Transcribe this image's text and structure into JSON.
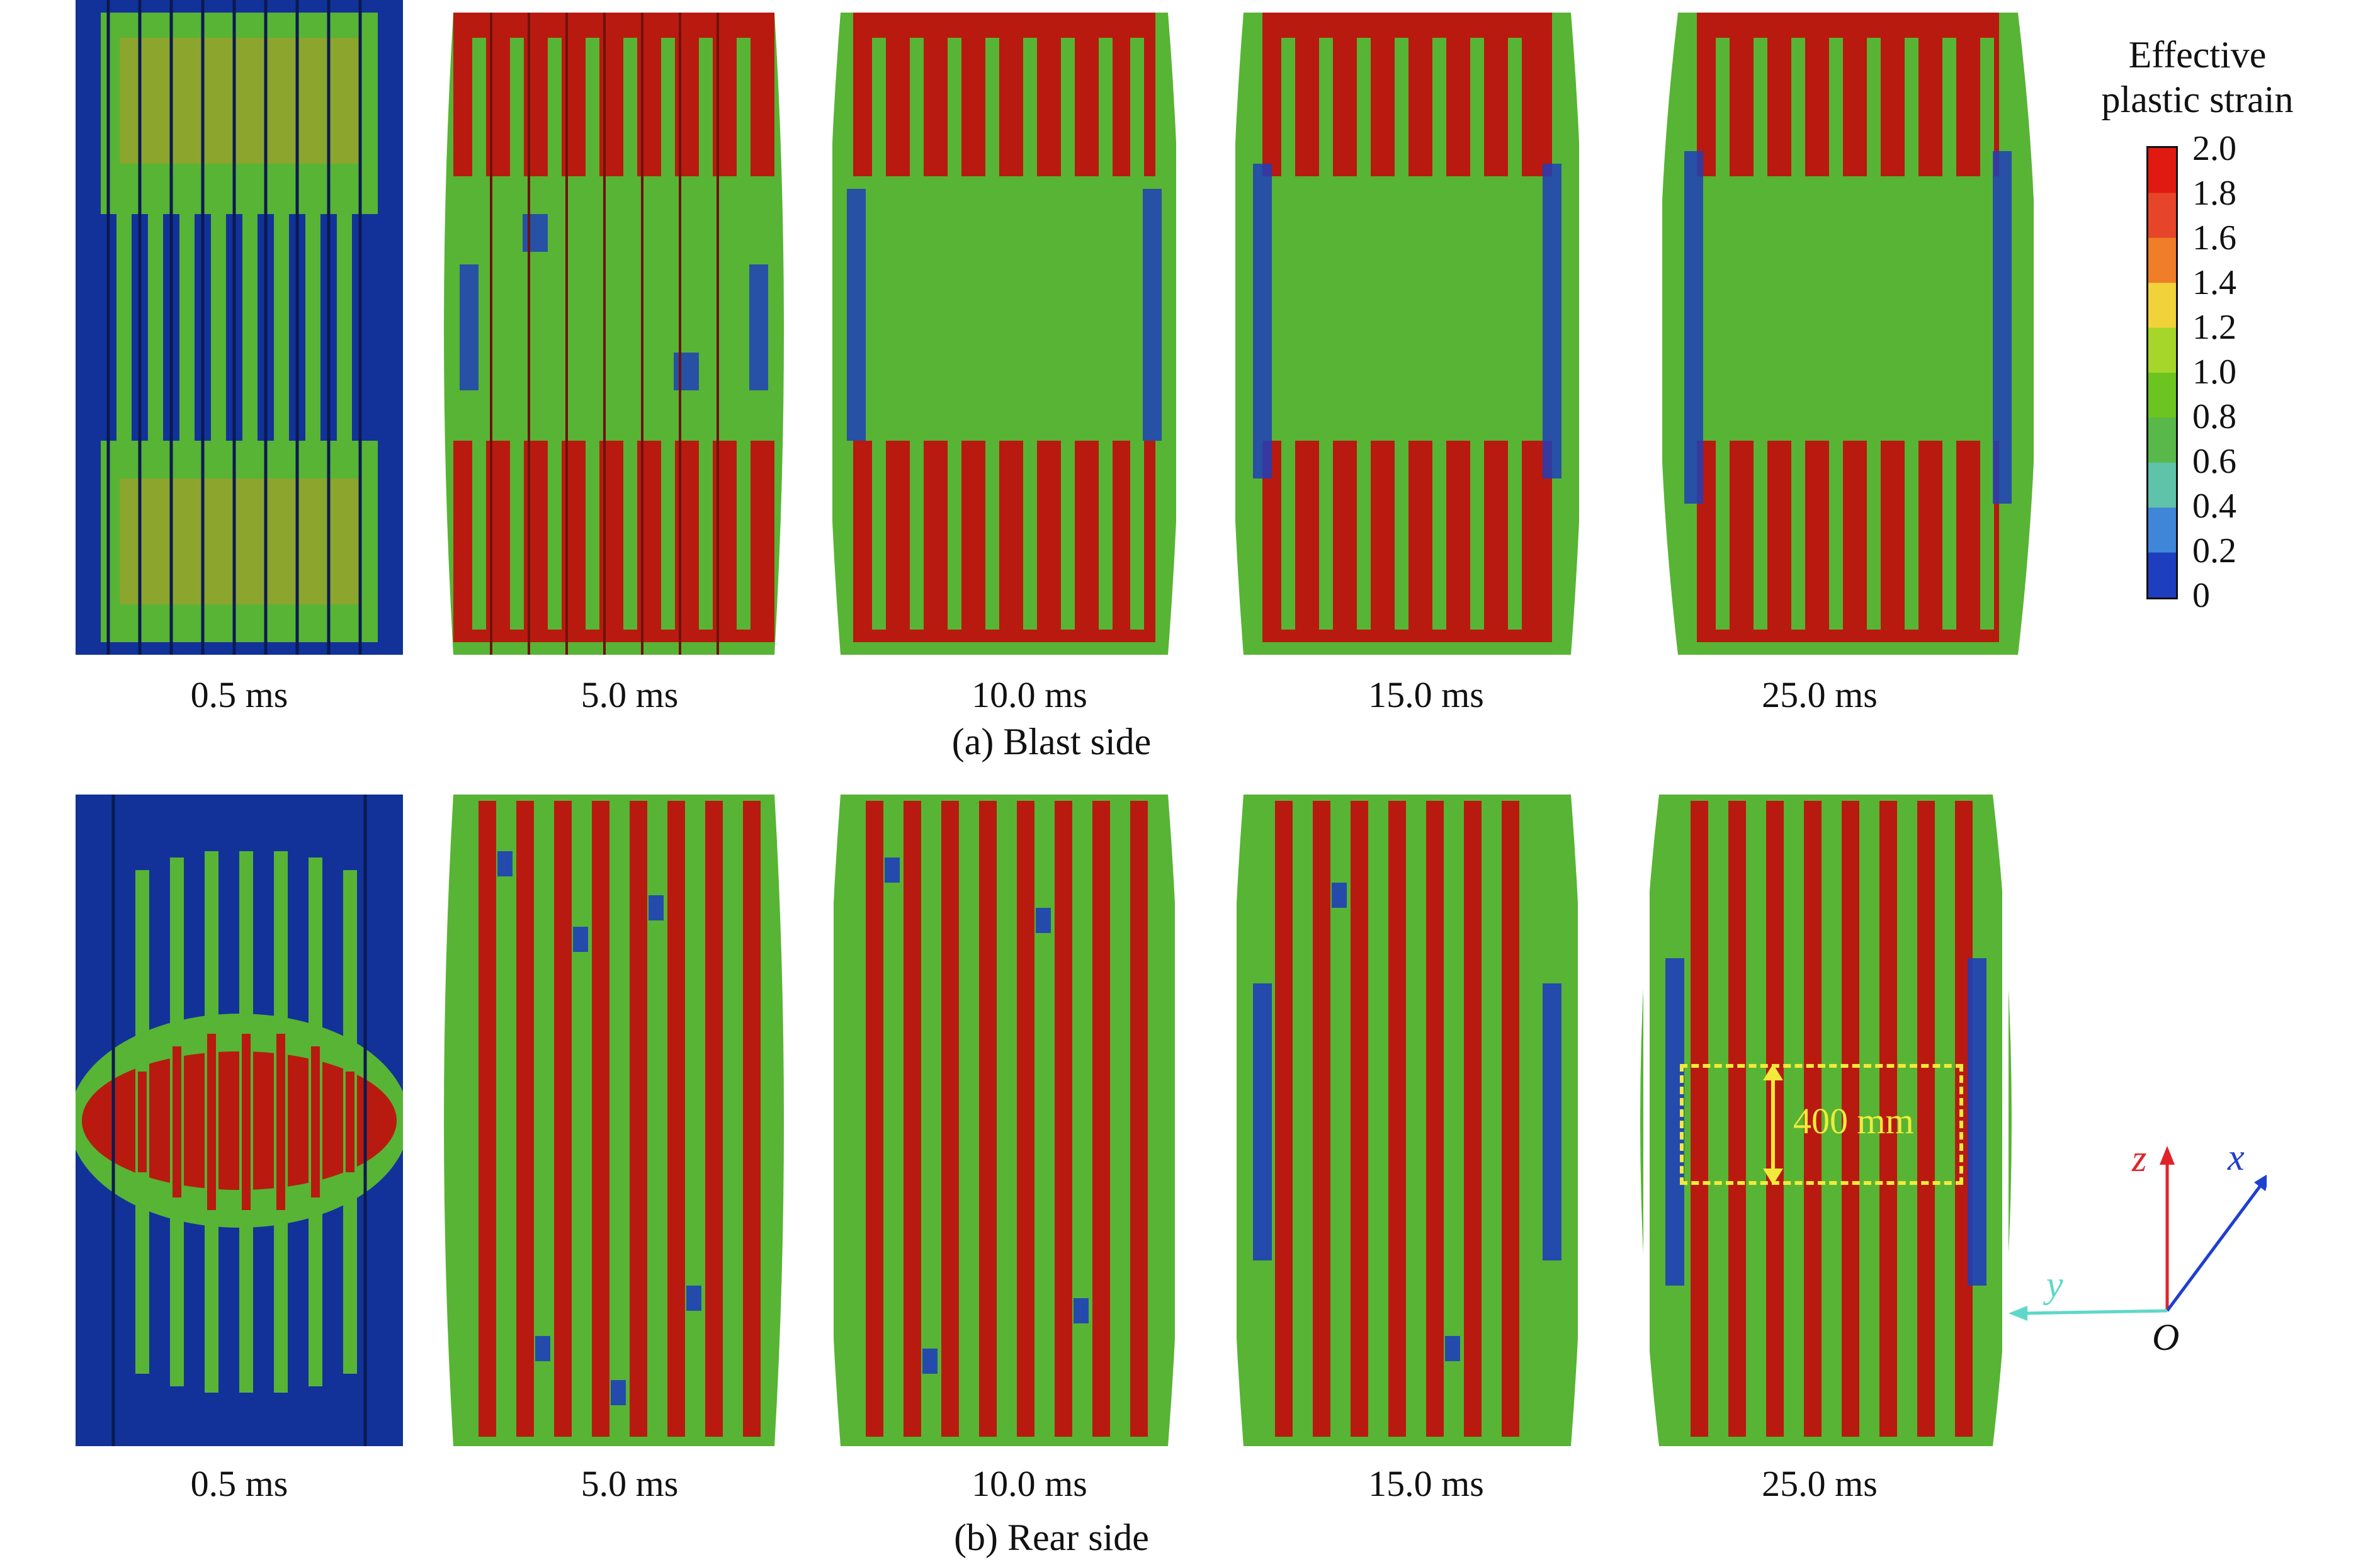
{
  "legend": {
    "title_line1": "Effective",
    "title_line2": "plastic strain",
    "ticks": [
      "2.0",
      "1.8",
      "1.6",
      "1.4",
      "1.2",
      "1.0",
      "0.8",
      "0.6",
      "0.4",
      "0.2",
      "0"
    ],
    "colors": [
      "#e01a10",
      "#e7452a",
      "#f07d28",
      "#f2d23a",
      "#a6d62a",
      "#6cc420",
      "#58b84a",
      "#5ec3a8",
      "#3f86d8",
      "#1d3fbf"
    ]
  },
  "rows": [
    {
      "caption": "(a) Blast side",
      "time_labels": [
        "0.5 ms",
        "5.0 ms",
        "10.0 ms",
        "15.0 ms",
        "25.0 ms"
      ]
    },
    {
      "caption": "(b) Rear side",
      "time_labels": [
        "0.5 ms",
        "5.0 ms",
        "10.0 ms",
        "15.0 ms",
        "25.0 ms"
      ]
    }
  ],
  "annotation": {
    "dimension_label": "400 mm"
  },
  "axes": {
    "z": "z",
    "x": "x",
    "y": "y",
    "origin": "O"
  },
  "colors": {
    "red": "#b81a10",
    "green": "#58b434",
    "blue": "#1f3fb8",
    "navy": "#12329a",
    "dim_yellow": "#f1ea3a"
  }
}
